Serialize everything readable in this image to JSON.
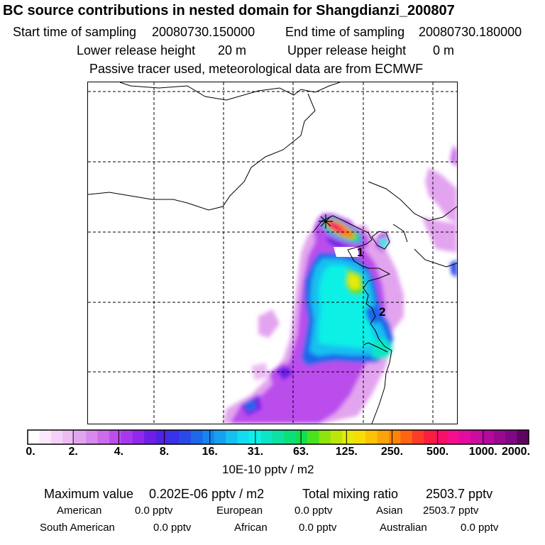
{
  "title": "BC  source contributions in nested domain for Shangdianzi_200807",
  "sampling": {
    "start_label": "Start time of sampling",
    "start_value": "20080730.150000",
    "end_label": "End time of sampling",
    "end_value": "20080730.180000"
  },
  "release": {
    "lower_label": "Lower release height",
    "lower_value": "20 m",
    "upper_label": "Upper release height",
    "upper_value": "0 m"
  },
  "tracer_note": "Passive tracer used, meteorological data are from ECMWF",
  "map": {
    "labels": [
      "1",
      "2"
    ]
  },
  "colorbar": {
    "colors": [
      "#ffffff",
      "#fbe9fb",
      "#f4d2f7",
      "#ecbcf3",
      "#e3a4ef",
      "#d889ed",
      "#cc6ced",
      "#bb4eed",
      "#a838ee",
      "#9028ee",
      "#6f1ee6",
      "#5022e4",
      "#3a32ea",
      "#2a4ae8",
      "#1e66ea",
      "#1683ee",
      "#16a0f0",
      "#16c0f0",
      "#12dcf2",
      "#0cf0e6",
      "#0de6c6",
      "#0de2a2",
      "#0ce079",
      "#14de4f",
      "#4ae11e",
      "#8ee40e",
      "#bce60a",
      "#e6ea08",
      "#f8dc08",
      "#fbc208",
      "#fda409",
      "#fd8408",
      "#fd6414",
      "#fc3c26",
      "#fa1e40",
      "#f90e68",
      "#f60e8c",
      "#e20c9e",
      "#cc0ba0",
      "#b4099c",
      "#9a0892",
      "#800785",
      "#5e0560"
    ],
    "ticks": [
      "0.",
      "2.",
      "4.",
      "8.",
      "16.",
      "31.",
      "63.",
      "125.",
      "250.",
      "500.",
      "1000.",
      "2000."
    ],
    "units": "10E-10 pptv / m2"
  },
  "summary": {
    "max_label": "Maximum value",
    "max_value": "0.202E-06 pptv / m2",
    "total_label": "Total mixing ratio",
    "total_value": "2503.7 pptv"
  },
  "regions": [
    {
      "name": "American",
      "value": "0.0 pptv"
    },
    {
      "name": "European",
      "value": "0.0 pptv"
    },
    {
      "name": "Asian",
      "value": "2503.7 pptv"
    },
    {
      "name": "South American",
      "value": "0.0 pptv"
    },
    {
      "name": "African",
      "value": "0.0 pptv"
    },
    {
      "name": "Australian",
      "value": "0.0 pptv"
    }
  ]
}
